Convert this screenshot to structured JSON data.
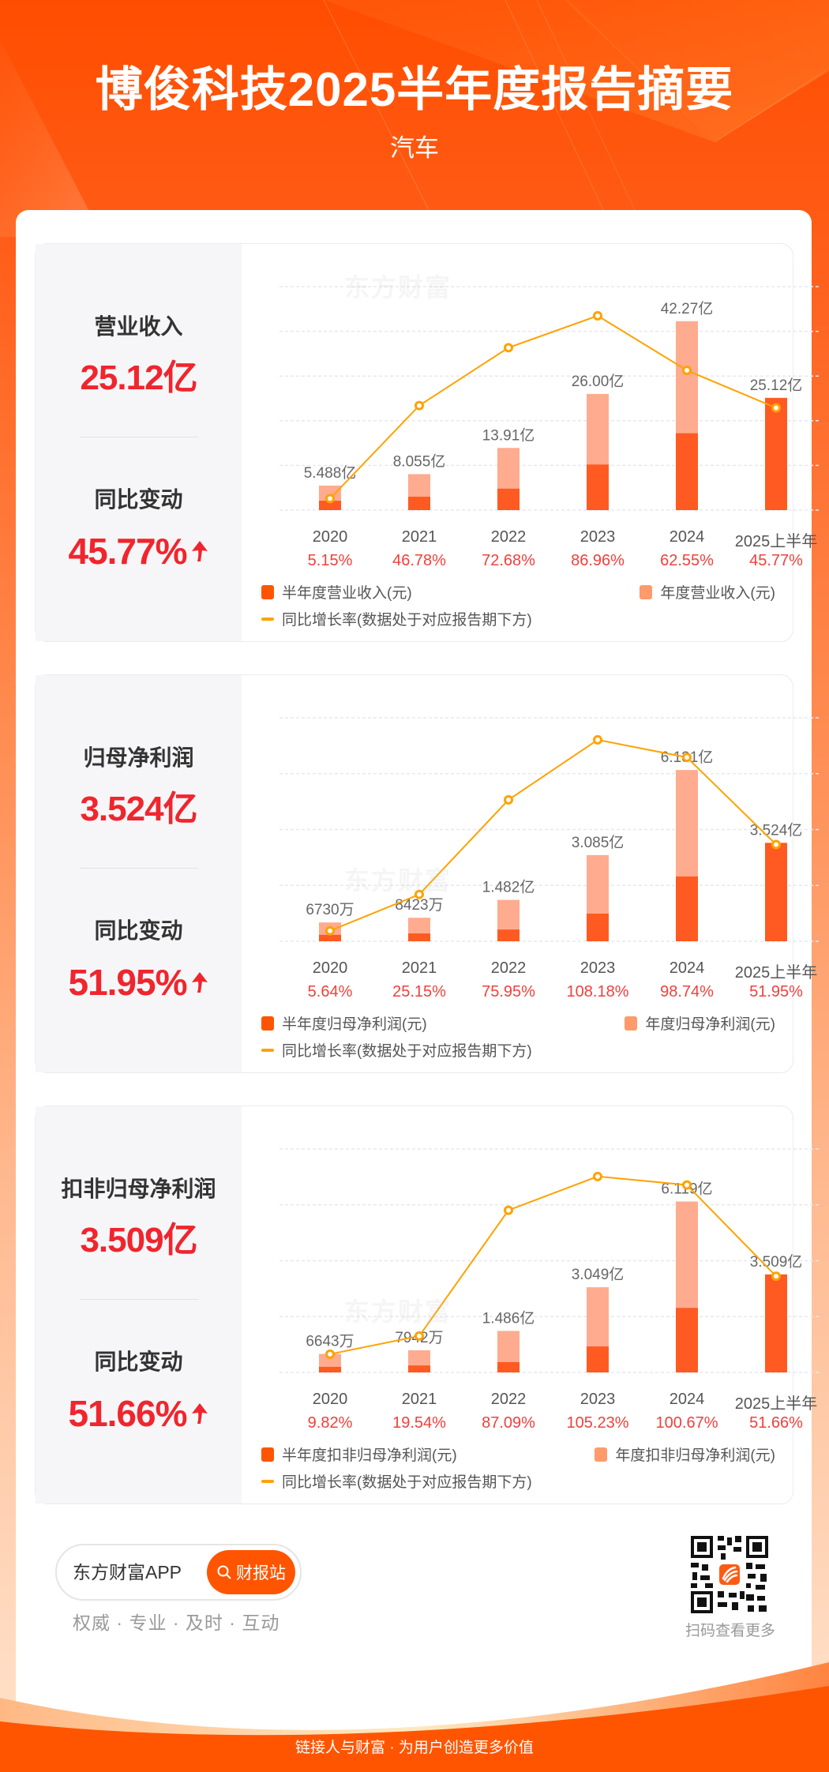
{
  "header": {
    "title": "博俊科技2025半年度报告摘要",
    "subtitle": "汽车"
  },
  "colors": {
    "brand_orange": "#ff5500",
    "half_year_bar": "#ff5a22",
    "annual_bar": "#ffab8f",
    "growth_line": "#ffa200",
    "value_red": "#f0252d",
    "pct_red": "#f0403c"
  },
  "sections": [
    {
      "metric_label": "营业收入",
      "metric_value": "25.12亿",
      "change_label": "同比变动",
      "change_value": "45.77%",
      "change_direction": "up",
      "legend": {
        "half": "半年度营业收入(元)",
        "annual": "年度营业收入(元)",
        "line": "同比增长率(数据处于对应报告期下方)"
      }
    },
    {
      "metric_label": "归母净利润",
      "metric_value": "3.524亿",
      "change_label": "同比变动",
      "change_value": "51.95%",
      "change_direction": "up",
      "legend": {
        "half": "半年度归母净利润(元)",
        "annual": "年度归母净利润(元)",
        "line": "同比增长率(数据处于对应报告期下方)"
      }
    },
    {
      "metric_label": "扣非归母净利润",
      "metric_value": "3.509亿",
      "change_label": "同比变动",
      "change_value": "51.66%",
      "change_direction": "up",
      "legend": {
        "half": "半年度扣非归母净利润(元)",
        "annual": "年度扣非归母净利润(元)",
        "line": "同比增长率(数据处于对应报告期下方)"
      }
    }
  ],
  "watermark": "东方财富",
  "chart_data": [
    {
      "type": "bar",
      "title": "营业收入",
      "categories": [
        "2020",
        "2021",
        "2022",
        "2023",
        "2024",
        "2025上半年"
      ],
      "bar_labels": [
        "5.488亿",
        "8.055亿",
        "13.91亿",
        "26.00亿",
        "42.27亿",
        "25.12亿"
      ],
      "growth_labels": [
        "5.15%",
        "46.78%",
        "72.68%",
        "86.96%",
        "62.55%",
        "45.77%"
      ],
      "series": [
        {
          "name": "半年度营业收入(元)",
          "unit": "亿",
          "values": [
            2.1,
            3.0,
            4.8,
            10.2,
            17.2,
            25.12
          ]
        },
        {
          "name": "年度营业收入(元)",
          "unit": "亿",
          "values": [
            5.488,
            8.055,
            13.91,
            26.0,
            42.27,
            null
          ]
        },
        {
          "name": "同比增长率",
          "type": "line",
          "unit": "%",
          "values": [
            5.15,
            46.78,
            72.68,
            86.96,
            62.55,
            45.77
          ]
        }
      ],
      "ylim": [
        0,
        50
      ],
      "y2lim": [
        0,
        100
      ],
      "grid": true,
      "gridlines": 6,
      "legend_position": "bottom"
    },
    {
      "type": "bar",
      "title": "归母净利润",
      "categories": [
        "2020",
        "2021",
        "2022",
        "2023",
        "2024",
        "2025上半年"
      ],
      "bar_labels": [
        "6730万",
        "8423万",
        "1.482亿",
        "3.085亿",
        "6.131亿",
        "3.524亿"
      ],
      "growth_labels": [
        "5.64%",
        "25.15%",
        "75.95%",
        "108.18%",
        "98.74%",
        "51.95%"
      ],
      "series": [
        {
          "name": "半年度归母净利润(元)",
          "unit": "亿",
          "values": [
            0.23,
            0.28,
            0.42,
            0.99,
            2.32,
            3.524
          ]
        },
        {
          "name": "年度归母净利润(元)",
          "unit": "亿",
          "values": [
            0.673,
            0.8423,
            1.482,
            3.085,
            6.131,
            null
          ]
        },
        {
          "name": "同比增长率",
          "type": "line",
          "unit": "%",
          "values": [
            5.64,
            25.15,
            75.95,
            108.18,
            98.74,
            51.95
          ]
        }
      ],
      "ylim": [
        0,
        8
      ],
      "y2lim": [
        0,
        120
      ],
      "grid": true,
      "gridlines": 5,
      "legend_position": "bottom"
    },
    {
      "type": "bar",
      "title": "扣非归母净利润",
      "categories": [
        "2020",
        "2021",
        "2022",
        "2023",
        "2024",
        "2025上半年"
      ],
      "bar_labels": [
        "6643万",
        "7942万",
        "1.486亿",
        "3.049亿",
        "6.119亿",
        "3.509亿"
      ],
      "growth_labels": [
        "9.82%",
        "19.54%",
        "87.09%",
        "105.23%",
        "100.67%",
        "51.66%"
      ],
      "series": [
        {
          "name": "半年度扣非归母净利润(元)",
          "unit": "亿",
          "values": [
            0.2,
            0.25,
            0.37,
            0.93,
            2.31,
            3.509
          ]
        },
        {
          "name": "年度扣非归母净利润(元)",
          "unit": "亿",
          "values": [
            0.6643,
            0.7942,
            1.486,
            3.049,
            6.119,
            null
          ]
        },
        {
          "name": "同比增长率",
          "type": "line",
          "unit": "%",
          "values": [
            9.82,
            19.54,
            87.09,
            105.23,
            100.67,
            51.66
          ]
        }
      ],
      "ylim": [
        0,
        8
      ],
      "y2lim": [
        0,
        120
      ],
      "grid": true,
      "gridlines": 5,
      "legend_position": "bottom"
    }
  ],
  "footer": {
    "app_name": "东方财富APP",
    "search_button": "财报站",
    "tagline": "权威 · 专业 · 及时 · 互动",
    "qr_caption": "扫码查看更多",
    "slogan": "链接人与财富 · 为用户创造更多价值"
  }
}
